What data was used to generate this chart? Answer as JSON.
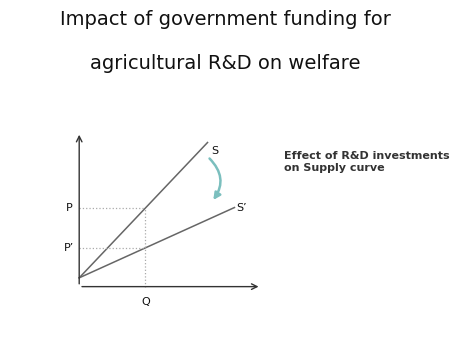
{
  "title_line1": "Impact of government funding for",
  "title_line2": "agricultural R&D on welfare",
  "title_fontsize": 14,
  "background_color": "#ffffff",
  "S_label": "S",
  "S_prime_label": "S’",
  "P_label": "P",
  "P_prime_label": "P’",
  "Q_label": "Q",
  "annotation_text": "Effect of R&D investments\non Supply curve",
  "annotation_fontsize": 8,
  "axis_color": "#333333",
  "line_color": "#666666",
  "dotted_color": "#aaaaaa",
  "arrow_color": "#7bbfbe",
  "label_fontsize": 8
}
